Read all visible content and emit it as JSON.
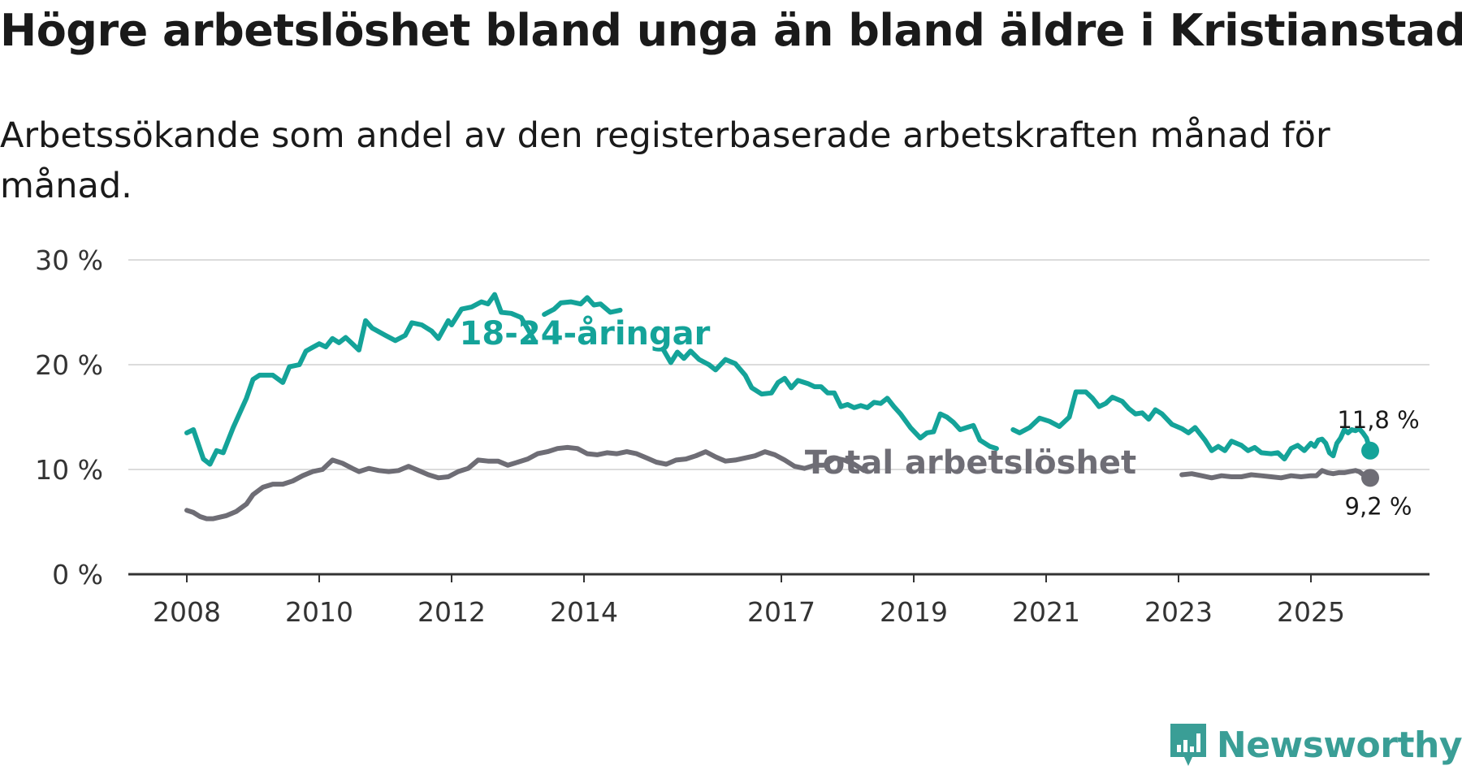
{
  "title": "Högre arbetslöshet bland unga än bland äldre i Kristianstad",
  "subtitle": "Arbetssökande som andel av den registerbaserade arbetskraften månad för månad.",
  "brand": {
    "name": "Newsworthy",
    "icon": "newsworthy-logo-icon",
    "color": "#3a9e96"
  },
  "chart_data": {
    "type": "line",
    "title": "Högre arbetslöshet bland unga än bland äldre i Kristianstad",
    "subtitle": "Arbetssökande som andel av den registerbaserade arbetskraften månad för månad.",
    "xlabel": "",
    "ylabel": "",
    "xlim": [
      2008,
      2026.6
    ],
    "ylim": [
      0,
      30
    ],
    "grid": true,
    "x_ticks": [
      2008,
      2010,
      2012,
      2014,
      2017,
      2019,
      2021,
      2023,
      2025
    ],
    "x_tick_labels": [
      "2008",
      "2010",
      "2012",
      "2014",
      "2017",
      "2019",
      "2021",
      "2023",
      "2025"
    ],
    "y_ticks": [
      0,
      10,
      20,
      30
    ],
    "y_tick_labels": [
      "0 %",
      "10 %",
      "20 %",
      "30 %"
    ],
    "series": [
      {
        "name": "18-24-åringar",
        "label": "18-24-åringar",
        "color": "#14a399",
        "end_label": "11,8 %",
        "points": [
          [
            2008.0,
            13.5
          ],
          [
            2008.1,
            13.8
          ],
          [
            2008.25,
            11.0
          ],
          [
            2008.35,
            10.5
          ],
          [
            2008.45,
            11.8
          ],
          [
            2008.55,
            11.6
          ],
          [
            2008.7,
            14.0
          ],
          [
            2008.9,
            16.8
          ],
          [
            2009.0,
            18.6
          ],
          [
            2009.1,
            19.0
          ],
          [
            2009.3,
            19.0
          ],
          [
            2009.45,
            18.3
          ],
          [
            2009.55,
            19.8
          ],
          [
            2009.7,
            20.0
          ],
          [
            2009.8,
            21.3
          ],
          [
            2010.0,
            22.0
          ],
          [
            2010.1,
            21.7
          ],
          [
            2010.2,
            22.5
          ],
          [
            2010.3,
            22.1
          ],
          [
            2010.4,
            22.6
          ],
          [
            2010.5,
            22.0
          ],
          [
            2010.6,
            21.4
          ],
          [
            2010.7,
            24.2
          ],
          [
            2010.8,
            23.5
          ],
          [
            2011.0,
            22.8
          ],
          [
            2011.15,
            22.3
          ],
          [
            2011.3,
            22.8
          ],
          [
            2011.4,
            24.0
          ],
          [
            2011.55,
            23.8
          ],
          [
            2011.7,
            23.2
          ],
          [
            2011.8,
            22.5
          ],
          [
            2011.95,
            24.2
          ],
          [
            2012.0,
            23.8
          ],
          [
            2012.15,
            25.3
          ],
          [
            2012.3,
            25.5
          ],
          [
            2012.45,
            26.0
          ],
          [
            2012.55,
            25.8
          ],
          [
            2012.65,
            26.7
          ],
          [
            2012.75,
            25.0
          ],
          [
            2012.9,
            24.9
          ],
          [
            2013.05,
            24.5
          ],
          [
            2013.25,
            22.3
          ]
        ],
        "points_2": [
          [
            2013.4,
            24.8
          ],
          [
            2013.55,
            25.3
          ],
          [
            2013.65,
            25.9
          ],
          [
            2013.8,
            26.0
          ],
          [
            2013.95,
            25.8
          ],
          [
            2014.05,
            26.4
          ],
          [
            2014.15,
            25.7
          ],
          [
            2014.25,
            25.8
          ],
          [
            2014.4,
            25.0
          ],
          [
            2014.55,
            25.2
          ]
        ],
        "points_3": [
          [
            2015.2,
            21.5
          ],
          [
            2015.32,
            20.2
          ],
          [
            2015.42,
            21.2
          ],
          [
            2015.52,
            20.6
          ],
          [
            2015.62,
            21.3
          ],
          [
            2015.75,
            20.5
          ],
          [
            2015.9,
            20.0
          ],
          [
            2016.0,
            19.5
          ],
          [
            2016.15,
            20.5
          ],
          [
            2016.3,
            20.1
          ],
          [
            2016.45,
            19.0
          ],
          [
            2016.55,
            17.8
          ],
          [
            2016.7,
            17.2
          ],
          [
            2016.85,
            17.3
          ],
          [
            2016.95,
            18.3
          ],
          [
            2017.05,
            18.7
          ],
          [
            2017.15,
            17.8
          ],
          [
            2017.25,
            18.5
          ],
          [
            2017.4,
            18.2
          ],
          [
            2017.5,
            17.9
          ],
          [
            2017.6,
            17.9
          ],
          [
            2017.7,
            17.3
          ],
          [
            2017.8,
            17.3
          ],
          [
            2017.9,
            16.0
          ],
          [
            2018.0,
            16.2
          ],
          [
            2018.1,
            15.9
          ],
          [
            2018.2,
            16.1
          ],
          [
            2018.3,
            15.9
          ],
          [
            2018.4,
            16.4
          ],
          [
            2018.5,
            16.3
          ],
          [
            2018.6,
            16.8
          ],
          [
            2018.7,
            16.0
          ],
          [
            2018.8,
            15.3
          ],
          [
            2018.95,
            14.0
          ],
          [
            2019.1,
            13.0
          ],
          [
            2019.2,
            13.5
          ],
          [
            2019.3,
            13.6
          ],
          [
            2019.4,
            15.3
          ],
          [
            2019.5,
            15.0
          ],
          [
            2019.6,
            14.5
          ],
          [
            2019.7,
            13.8
          ],
          [
            2019.8,
            14.0
          ],
          [
            2019.9,
            14.2
          ],
          [
            2020.0,
            12.8
          ],
          [
            2020.15,
            12.2
          ],
          [
            2020.25,
            12.0
          ]
        ],
        "points_4": [
          [
            2020.5,
            13.8
          ],
          [
            2020.6,
            13.5
          ],
          [
            2020.75,
            14.0
          ],
          [
            2020.9,
            14.9
          ],
          [
            2021.05,
            14.6
          ],
          [
            2021.2,
            14.1
          ],
          [
            2021.35,
            15.0
          ],
          [
            2021.45,
            17.4
          ],
          [
            2021.6,
            17.4
          ],
          [
            2021.7,
            16.8
          ],
          [
            2021.8,
            16.0
          ],
          [
            2021.9,
            16.3
          ],
          [
            2022.0,
            16.9
          ],
          [
            2022.15,
            16.5
          ],
          [
            2022.25,
            15.8
          ],
          [
            2022.35,
            15.3
          ],
          [
            2022.45,
            15.4
          ],
          [
            2022.55,
            14.8
          ],
          [
            2022.65,
            15.7
          ],
          [
            2022.75,
            15.3
          ],
          [
            2022.9,
            14.3
          ],
          [
            2023.05,
            13.9
          ],
          [
            2023.15,
            13.5
          ],
          [
            2023.25,
            14.0
          ],
          [
            2023.4,
            12.8
          ],
          [
            2023.5,
            11.8
          ],
          [
            2023.6,
            12.2
          ],
          [
            2023.7,
            11.8
          ],
          [
            2023.8,
            12.7
          ],
          [
            2023.95,
            12.3
          ],
          [
            2024.05,
            11.8
          ],
          [
            2024.15,
            12.1
          ],
          [
            2024.25,
            11.6
          ],
          [
            2024.4,
            11.5
          ],
          [
            2024.5,
            11.6
          ],
          [
            2024.6,
            11.0
          ],
          [
            2024.7,
            12.0
          ],
          [
            2024.8,
            12.3
          ],
          [
            2024.9,
            11.8
          ],
          [
            2025.0,
            12.5
          ],
          [
            2025.1,
            12.2
          ],
          [
            2025.2,
            12.8
          ],
          [
            2025.3,
            12.9
          ],
          [
            2025.4,
            12.5
          ],
          [
            2025.5,
            11.6
          ],
          [
            2025.6,
            11.3
          ],
          [
            2025.7,
            12.5
          ],
          [
            2025.8,
            13.0
          ],
          [
            2025.9,
            13.8
          ],
          [
            2026.0,
            13.5
          ],
          [
            2026.1,
            13.8
          ],
          [
            2026.2,
            13.7
          ],
          [
            2026.3,
            13.9
          ],
          [
            2026.4,
            13.5
          ],
          [
            2026.5,
            13.0
          ],
          [
            2026.6,
            11.8
          ]
        ]
      },
      {
        "name": "Total arbetslöshet",
        "label": "Total arbetslöshet",
        "color": "#6e6d75",
        "end_label": "9,2 %",
        "points": [
          [
            2008.0,
            6.1
          ],
          [
            2008.1,
            5.9
          ],
          [
            2008.2,
            5.5
          ],
          [
            2008.3,
            5.3
          ],
          [
            2008.4,
            5.3
          ],
          [
            2008.6,
            5.6
          ],
          [
            2008.75,
            6.0
          ],
          [
            2008.9,
            6.7
          ],
          [
            2009.0,
            7.6
          ],
          [
            2009.15,
            8.3
          ],
          [
            2009.3,
            8.6
          ],
          [
            2009.45,
            8.6
          ],
          [
            2009.6,
            8.9
          ],
          [
            2009.75,
            9.4
          ],
          [
            2009.9,
            9.8
          ],
          [
            2010.05,
            10.0
          ],
          [
            2010.2,
            10.9
          ],
          [
            2010.35,
            10.6
          ],
          [
            2010.5,
            10.1
          ],
          [
            2010.6,
            9.8
          ],
          [
            2010.75,
            10.1
          ],
          [
            2010.9,
            9.9
          ],
          [
            2011.05,
            9.8
          ],
          [
            2011.2,
            9.9
          ],
          [
            2011.35,
            10.3
          ],
          [
            2011.5,
            9.9
          ],
          [
            2011.65,
            9.5
          ],
          [
            2011.8,
            9.2
          ],
          [
            2011.95,
            9.3
          ],
          [
            2012.1,
            9.8
          ],
          [
            2012.25,
            10.1
          ],
          [
            2012.4,
            10.9
          ],
          [
            2012.55,
            10.8
          ],
          [
            2012.7,
            10.8
          ],
          [
            2012.85,
            10.4
          ],
          [
            2013.0,
            10.7
          ],
          [
            2013.15,
            11.0
          ],
          [
            2013.3,
            11.5
          ],
          [
            2013.45,
            11.7
          ],
          [
            2013.6,
            12.0
          ],
          [
            2013.75,
            12.1
          ],
          [
            2013.9,
            12.0
          ],
          [
            2014.05,
            11.5
          ],
          [
            2014.2,
            11.4
          ],
          [
            2014.35,
            11.6
          ],
          [
            2014.5,
            11.5
          ],
          [
            2014.65,
            11.7
          ],
          [
            2014.8,
            11.5
          ],
          [
            2014.95,
            11.1
          ],
          [
            2015.1,
            10.7
          ],
          [
            2015.25,
            10.5
          ],
          [
            2015.4,
            10.9
          ],
          [
            2015.55,
            11.0
          ],
          [
            2015.7,
            11.3
          ],
          [
            2015.85,
            11.7
          ],
          [
            2016.0,
            11.2
          ],
          [
            2016.15,
            10.8
          ],
          [
            2016.3,
            10.9
          ],
          [
            2016.45,
            11.1
          ],
          [
            2016.6,
            11.3
          ],
          [
            2016.75,
            11.7
          ],
          [
            2016.9,
            11.4
          ],
          [
            2017.05,
            10.9
          ],
          [
            2017.2,
            10.3
          ],
          [
            2017.35,
            10.1
          ],
          [
            2017.5,
            10.4
          ],
          [
            2017.65,
            10.4
          ],
          [
            2017.8,
            11.1
          ],
          [
            2017.95,
            10.9
          ],
          [
            2018.1,
            10.5
          ],
          [
            2018.25,
            9.9
          ]
        ],
        "points_2": [
          [
            2023.05,
            9.5
          ],
          [
            2023.2,
            9.6
          ],
          [
            2023.35,
            9.4
          ],
          [
            2023.5,
            9.2
          ],
          [
            2023.65,
            9.4
          ],
          [
            2023.8,
            9.3
          ],
          [
            2023.95,
            9.3
          ],
          [
            2024.1,
            9.5
          ],
          [
            2024.25,
            9.4
          ],
          [
            2024.4,
            9.3
          ],
          [
            2024.55,
            9.2
          ],
          [
            2024.7,
            9.4
          ],
          [
            2024.85,
            9.3
          ],
          [
            2025.0,
            9.4
          ],
          [
            2025.15,
            9.4
          ],
          [
            2025.3,
            9.9
          ],
          [
            2025.45,
            9.7
          ],
          [
            2025.6,
            9.6
          ],
          [
            2025.75,
            9.7
          ],
          [
            2025.9,
            9.7
          ],
          [
            2026.05,
            9.8
          ],
          [
            2026.2,
            9.9
          ],
          [
            2026.3,
            9.8
          ],
          [
            2026.45,
            9.4
          ],
          [
            2026.6,
            9.2
          ]
        ]
      }
    ]
  }
}
